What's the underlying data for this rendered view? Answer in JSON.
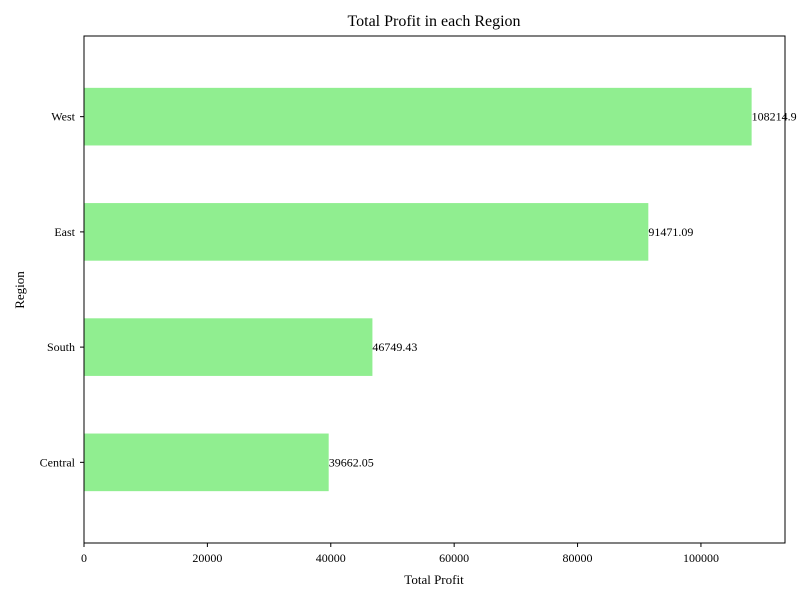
{
  "chart_data": {
    "type": "bar",
    "orientation": "horizontal",
    "title": "Total Profit in each Region",
    "xlabel": "Total Profit",
    "ylabel": "Region",
    "categories": [
      "Central",
      "South",
      "East",
      "West"
    ],
    "values": [
      39662.05,
      46749.43,
      91471.09,
      108214.95
    ],
    "value_labels": [
      "39662.05",
      "46749.43",
      "91471.09",
      "108214.9"
    ],
    "xlim": [
      0,
      113625.7
    ],
    "xticks": [
      0,
      20000,
      40000,
      60000,
      80000,
      100000
    ],
    "bar_color": "#90EE90",
    "grid": false,
    "legend": false
  }
}
